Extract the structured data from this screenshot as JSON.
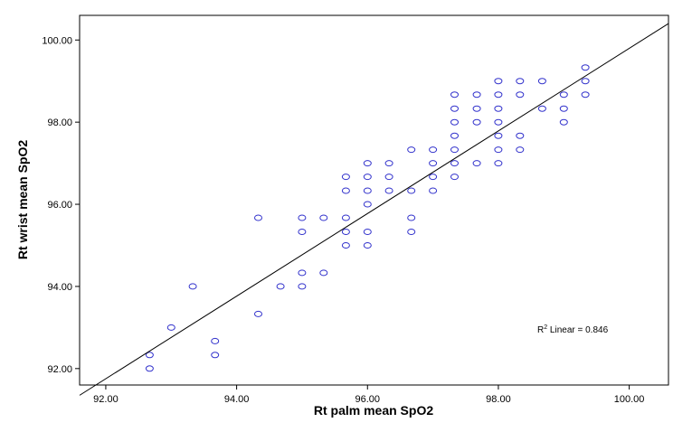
{
  "chart_data": {
    "type": "scatter",
    "xlabel": "Rt palm mean SpO2",
    "ylabel": "Rt wrist mean SpO2",
    "xlim": [
      91.6,
      100.6
    ],
    "ylim": [
      91.6,
      100.6
    ],
    "x_ticks": [
      "92.00",
      "94.00",
      "96.00",
      "98.00",
      "100.00"
    ],
    "y_ticks": [
      "92.00",
      "94.00",
      "96.00",
      "98.00",
      "100.00"
    ],
    "grid": false,
    "marker": "hollow circle",
    "point_color": "#3333cc",
    "fit_line": {
      "type": "linear",
      "from": [
        91.6,
        91.35
      ],
      "to": [
        100.6,
        100.4
      ]
    },
    "annotation": {
      "prefix": "R",
      "superscript": "2",
      "text": " Linear = 0.846"
    },
    "points": [
      [
        92.67,
        92.33
      ],
      [
        92.67,
        92.0
      ],
      [
        93.0,
        93.0
      ],
      [
        93.33,
        94.0
      ],
      [
        93.67,
        92.67
      ],
      [
        93.67,
        92.33
      ],
      [
        94.33,
        93.33
      ],
      [
        94.33,
        95.67
      ],
      [
        94.67,
        94.0
      ],
      [
        95.0,
        95.67
      ],
      [
        95.0,
        95.33
      ],
      [
        95.0,
        94.33
      ],
      [
        95.0,
        94.0
      ],
      [
        95.33,
        95.67
      ],
      [
        95.33,
        94.33
      ],
      [
        95.67,
        96.67
      ],
      [
        95.67,
        96.33
      ],
      [
        95.67,
        95.67
      ],
      [
        95.67,
        95.33
      ],
      [
        95.67,
        95.0
      ],
      [
        96.0,
        97.0
      ],
      [
        96.0,
        96.67
      ],
      [
        96.0,
        96.33
      ],
      [
        96.0,
        96.0
      ],
      [
        96.0,
        95.33
      ],
      [
        96.0,
        95.0
      ],
      [
        96.33,
        97.0
      ],
      [
        96.33,
        96.67
      ],
      [
        96.33,
        96.33
      ],
      [
        96.67,
        97.33
      ],
      [
        96.67,
        96.33
      ],
      [
        96.67,
        95.67
      ],
      [
        96.67,
        95.33
      ],
      [
        97.0,
        97.33
      ],
      [
        97.0,
        97.0
      ],
      [
        97.0,
        96.67
      ],
      [
        97.0,
        96.33
      ],
      [
        97.33,
        98.67
      ],
      [
        97.33,
        98.33
      ],
      [
        97.33,
        98.0
      ],
      [
        97.33,
        97.67
      ],
      [
        97.33,
        97.33
      ],
      [
        97.33,
        97.0
      ],
      [
        97.33,
        96.67
      ],
      [
        97.67,
        98.67
      ],
      [
        97.67,
        98.33
      ],
      [
        97.67,
        98.0
      ],
      [
        97.67,
        97.0
      ],
      [
        98.0,
        99.0
      ],
      [
        98.0,
        98.67
      ],
      [
        98.0,
        98.33
      ],
      [
        98.0,
        98.0
      ],
      [
        98.0,
        97.67
      ],
      [
        98.0,
        97.33
      ],
      [
        98.0,
        97.0
      ],
      [
        98.33,
        99.0
      ],
      [
        98.33,
        98.67
      ],
      [
        98.33,
        97.67
      ],
      [
        98.33,
        97.33
      ],
      [
        98.67,
        99.0
      ],
      [
        98.67,
        98.33
      ],
      [
        99.0,
        98.67
      ],
      [
        99.0,
        98.33
      ],
      [
        99.0,
        98.0
      ],
      [
        99.33,
        99.33
      ],
      [
        99.33,
        99.0
      ],
      [
        99.33,
        98.67
      ]
    ]
  }
}
